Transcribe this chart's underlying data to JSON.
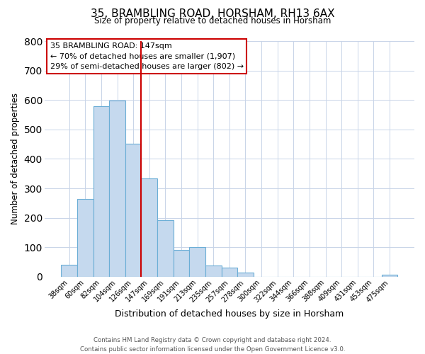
{
  "title": "35, BRAMBLING ROAD, HORSHAM, RH13 6AX",
  "subtitle": "Size of property relative to detached houses in Horsham",
  "xlabel": "Distribution of detached houses by size in Horsham",
  "ylabel": "Number of detached properties",
  "bar_color": "#c5d9ee",
  "bar_edge_color": "#6baed6",
  "bin_labels": [
    "38sqm",
    "60sqm",
    "82sqm",
    "104sqm",
    "126sqm",
    "147sqm",
    "169sqm",
    "191sqm",
    "213sqm",
    "235sqm",
    "257sqm",
    "278sqm",
    "300sqm",
    "322sqm",
    "344sqm",
    "366sqm",
    "388sqm",
    "409sqm",
    "431sqm",
    "453sqm",
    "475sqm"
  ],
  "bar_heights": [
    40,
    263,
    580,
    598,
    452,
    333,
    193,
    91,
    100,
    38,
    32,
    15,
    0,
    0,
    0,
    0,
    0,
    0,
    0,
    0,
    8
  ],
  "vline_index": 5,
  "vline_color": "#cc0000",
  "ylim": [
    0,
    800
  ],
  "yticks": [
    0,
    100,
    200,
    300,
    400,
    500,
    600,
    700,
    800
  ],
  "annotation_title": "35 BRAMBLING ROAD: 147sqm",
  "annotation_line1": "← 70% of detached houses are smaller (1,907)",
  "annotation_line2": "29% of semi-detached houses are larger (802) →",
  "annotation_box_color": "#ffffff",
  "annotation_box_edge_color": "#cc0000",
  "footer_line1": "Contains HM Land Registry data © Crown copyright and database right 2024.",
  "footer_line2": "Contains public sector information licensed under the Open Government Licence v3.0.",
  "background_color": "#ffffff",
  "grid_color": "#c8d4e8"
}
